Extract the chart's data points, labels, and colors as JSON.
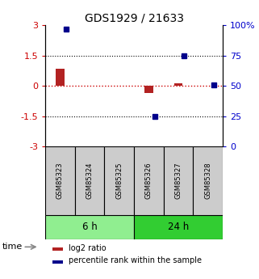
{
  "title": "GDS1929 / 21633",
  "samples": [
    "GSM85323",
    "GSM85324",
    "GSM85325",
    "GSM85326",
    "GSM85327",
    "GSM85328"
  ],
  "log2_ratio": [
    0.85,
    0.0,
    0.0,
    -0.35,
    0.12,
    0.0
  ],
  "percentile_rank": [
    97.0,
    null,
    null,
    25.0,
    75.0,
    50.5
  ],
  "ylim_left": [
    -3,
    3
  ],
  "yticks_left": [
    -3,
    -1.5,
    0,
    1.5,
    3
  ],
  "yticks_right": [
    0,
    25,
    50,
    75,
    100
  ],
  "group_labels": [
    "6 h",
    "24 h"
  ],
  "group_colors": [
    "#90EE90",
    "#32CD32"
  ],
  "bar_color_red": "#B22222",
  "bar_color_blue": "#00008B",
  "time_label": "time",
  "legend": [
    "log2 ratio",
    "percentile rank within the sample"
  ],
  "background_color": "#FFFFFF",
  "ytick_color_left": "#CC0000",
  "ytick_color_right": "#0000CC"
}
